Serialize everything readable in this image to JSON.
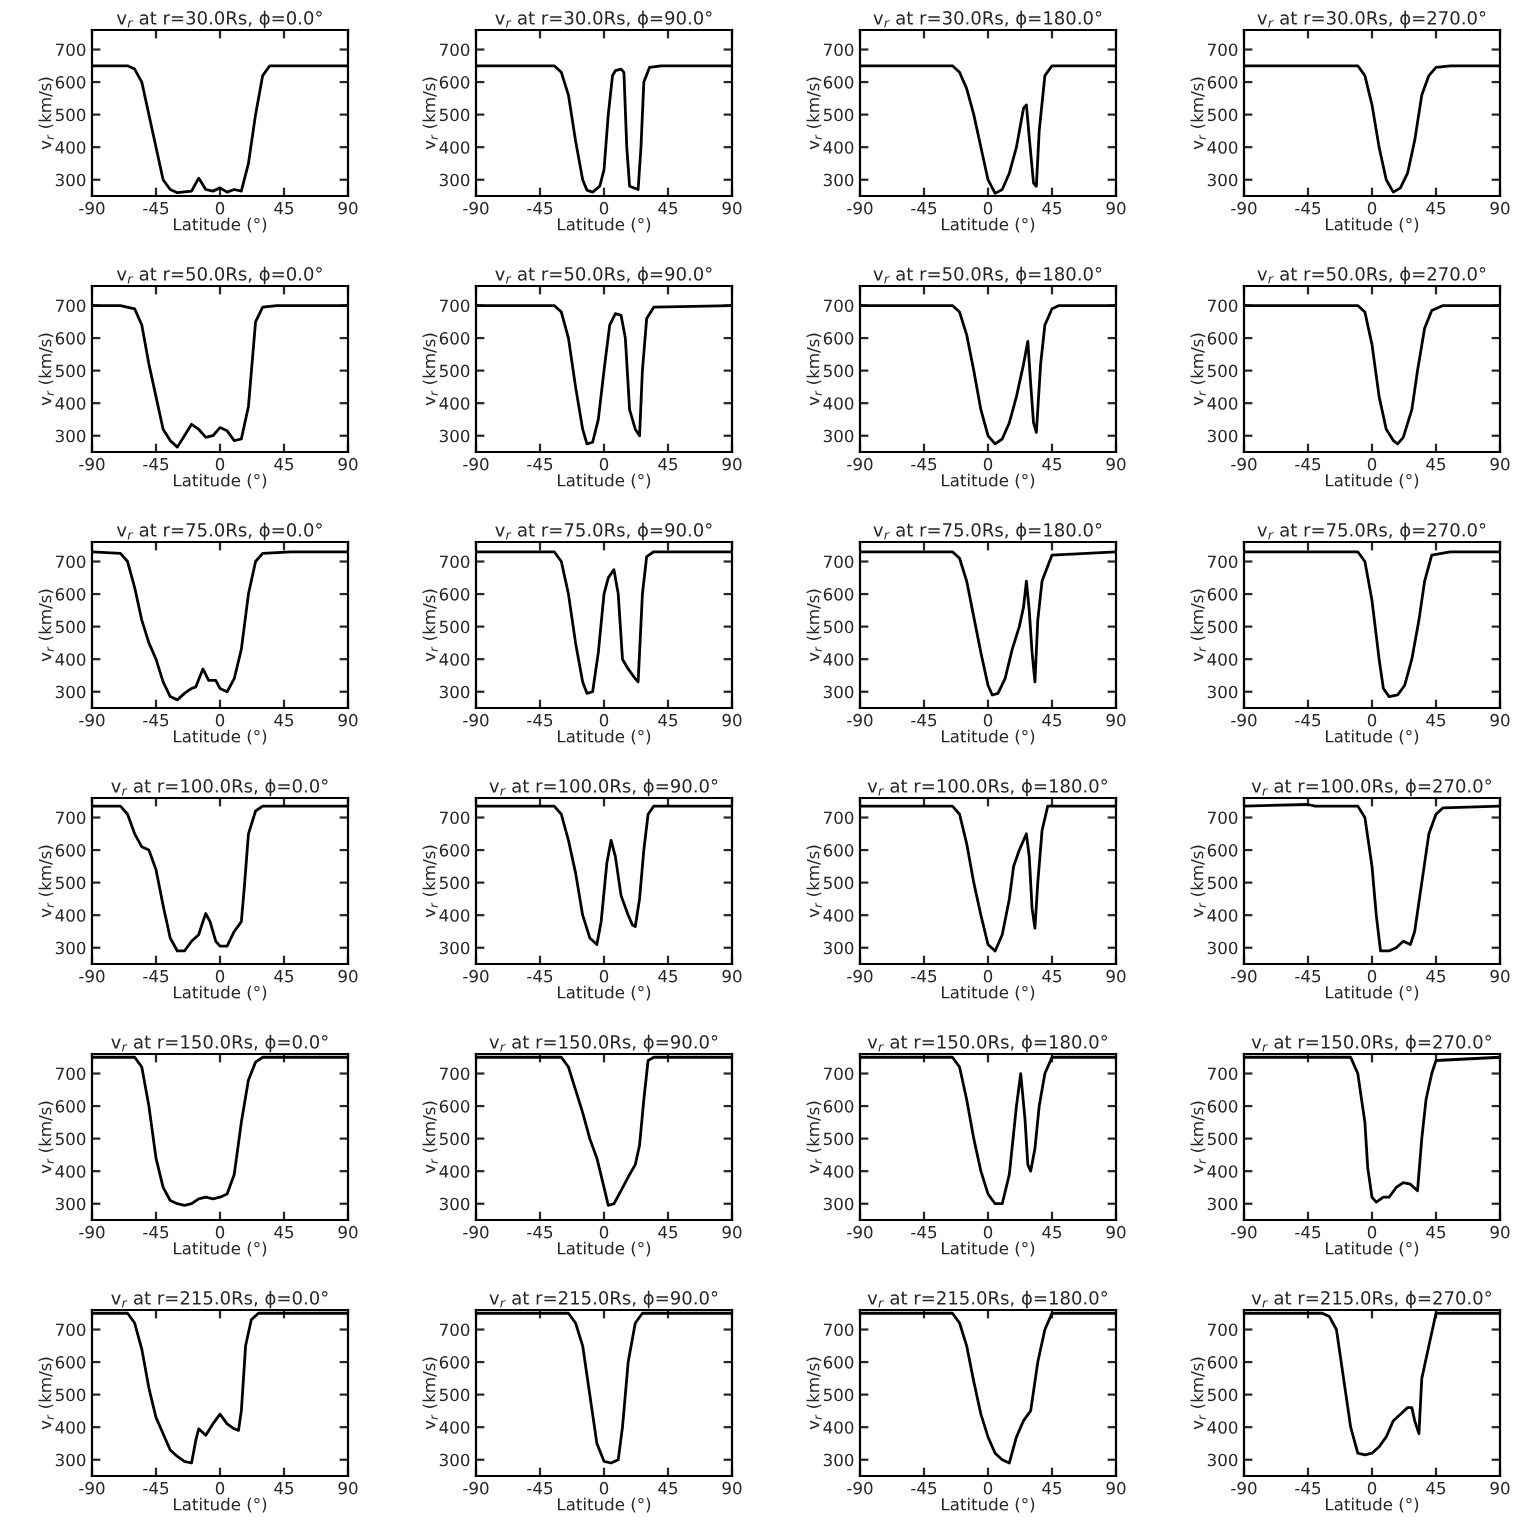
{
  "chart_data": [
    {
      "type": "line",
      "title": "v$_{r}$ at r=30.0Rs, ϕ=0.0°",
      "xlabel": "Latitude (°)",
      "ylabel": "v$_{r}$ (km/s)",
      "color": "#000000",
      "xlim": [
        -90,
        90
      ],
      "xticks": [
        -90,
        -45,
        0,
        45,
        90
      ],
      "ylim": [
        250,
        760
      ],
      "yticks": [
        300,
        400,
        500,
        600,
        700
      ],
      "x": [
        -90,
        -65,
        -60,
        -55,
        -50,
        -45,
        -40,
        -35,
        -30,
        -20,
        -15,
        -10,
        -5,
        0,
        5,
        10,
        15,
        20,
        25,
        30,
        35,
        90
      ],
      "values": [
        650,
        650,
        640,
        600,
        500,
        400,
        300,
        270,
        260,
        265,
        305,
        270,
        265,
        275,
        262,
        270,
        265,
        350,
        500,
        620,
        650,
        650
      ]
    },
    {
      "type": "line",
      "title": "v$_{r}$ at r=30.0Rs, ϕ=90.0°",
      "xlabel": "Latitude (°)",
      "ylabel": "v$_{r}$ (km/s)",
      "color": "#000000",
      "xlim": [
        -90,
        90
      ],
      "xticks": [
        -90,
        -45,
        0,
        45,
        90
      ],
      "ylim": [
        250,
        760
      ],
      "yticks": [
        300,
        400,
        500,
        600,
        700
      ],
      "x": [
        -90,
        -35,
        -30,
        -25,
        -20,
        -15,
        -12,
        -8,
        -3,
        0,
        3,
        6,
        8,
        12,
        14,
        16,
        18,
        24,
        26,
        28,
        32,
        40,
        90
      ],
      "values": [
        650,
        650,
        630,
        560,
        420,
        300,
        268,
        262,
        280,
        330,
        500,
        620,
        635,
        640,
        630,
        400,
        280,
        270,
        400,
        600,
        645,
        650,
        650
      ]
    },
    {
      "type": "line",
      "title": "v$_{r}$ at r=30.0Rs, ϕ=180.0°",
      "xlabel": "Latitude (°)",
      "ylabel": "v$_{r}$ (km/s)",
      "color": "#000000",
      "xlim": [
        -90,
        90
      ],
      "xticks": [
        -90,
        -45,
        0,
        45,
        90
      ],
      "ylim": [
        250,
        760
      ],
      "yticks": [
        300,
        400,
        500,
        600,
        700
      ],
      "x": [
        -90,
        -25,
        -20,
        -15,
        -10,
        -5,
        0,
        5,
        10,
        15,
        20,
        25,
        27,
        29,
        32,
        34,
        36,
        40,
        45,
        90
      ],
      "values": [
        650,
        650,
        630,
        580,
        500,
        400,
        300,
        258,
        270,
        320,
        400,
        520,
        530,
        430,
        290,
        280,
        450,
        620,
        650,
        650
      ]
    },
    {
      "type": "line",
      "title": "v$_{r}$ at r=30.0Rs, ϕ=270.0°",
      "xlabel": "Latitude (°)",
      "ylabel": "v$_{r}$ (km/s)",
      "color": "#000000",
      "xlim": [
        -90,
        90
      ],
      "xticks": [
        -90,
        -45,
        0,
        45,
        90
      ],
      "ylim": [
        250,
        760
      ],
      "yticks": [
        300,
        400,
        500,
        600,
        700
      ],
      "x": [
        -90,
        -10,
        -5,
        0,
        5,
        10,
        15,
        20,
        25,
        30,
        35,
        40,
        45,
        55,
        90
      ],
      "values": [
        650,
        650,
        620,
        530,
        400,
        300,
        262,
        275,
        320,
        420,
        560,
        620,
        645,
        650,
        650
      ]
    },
    {
      "type": "line",
      "title": "v$_{r}$ at r=50.0Rs, ϕ=0.0°",
      "xlabel": "Latitude (°)",
      "ylabel": "v$_{r}$ (km/s)",
      "color": "#000000",
      "xlim": [
        -90,
        90
      ],
      "xticks": [
        -90,
        -45,
        0,
        45,
        90
      ],
      "ylim": [
        250,
        760
      ],
      "yticks": [
        300,
        400,
        500,
        600,
        700
      ],
      "x": [
        -90,
        -70,
        -60,
        -55,
        -50,
        -45,
        -40,
        -35,
        -30,
        -25,
        -20,
        -15,
        -10,
        -5,
        0,
        5,
        10,
        15,
        20,
        25,
        30,
        40,
        90
      ],
      "values": [
        700,
        700,
        690,
        640,
        520,
        420,
        320,
        285,
        265,
        300,
        335,
        320,
        295,
        300,
        325,
        315,
        285,
        290,
        390,
        650,
        695,
        700,
        700
      ]
    },
    {
      "type": "line",
      "title": "v$_{r}$ at r=50.0Rs, ϕ=90.0°",
      "xlabel": "Latitude (°)",
      "ylabel": "v$_{r}$ (km/s)",
      "color": "#000000",
      "xlim": [
        -90,
        90
      ],
      "xticks": [
        -90,
        -45,
        0,
        45,
        90
      ],
      "ylim": [
        250,
        760
      ],
      "yticks": [
        300,
        400,
        500,
        600,
        700
      ],
      "x": [
        -90,
        -35,
        -30,
        -25,
        -20,
        -15,
        -12,
        -8,
        -4,
        0,
        4,
        8,
        12,
        15,
        18,
        22,
        25,
        27,
        30,
        35,
        90
      ],
      "values": [
        700,
        700,
        680,
        600,
        450,
        320,
        275,
        280,
        350,
        500,
        640,
        675,
        670,
        600,
        380,
        320,
        300,
        500,
        660,
        695,
        700
      ]
    },
    {
      "type": "line",
      "title": "v$_{r}$ at r=50.0Rs, ϕ=180.0°",
      "xlabel": "Latitude (°)",
      "ylabel": "v$_{r}$ (km/s)",
      "color": "#000000",
      "xlim": [
        -90,
        90
      ],
      "xticks": [
        -90,
        -45,
        0,
        45,
        90
      ],
      "ylim": [
        250,
        760
      ],
      "yticks": [
        300,
        400,
        500,
        600,
        700
      ],
      "x": [
        -90,
        -25,
        -20,
        -15,
        -10,
        -5,
        0,
        5,
        10,
        15,
        20,
        25,
        28,
        30,
        32,
        34,
        37,
        40,
        45,
        50,
        90
      ],
      "values": [
        700,
        700,
        680,
        610,
        500,
        380,
        300,
        275,
        290,
        340,
        420,
        520,
        590,
        460,
        340,
        310,
        520,
        640,
        690,
        700,
        700
      ]
    },
    {
      "type": "line",
      "title": "v$_{r}$ at r=50.0Rs, ϕ=270.0°",
      "xlabel": "Latitude (°)",
      "ylabel": "v$_{r}$ (km/s)",
      "color": "#000000",
      "xlim": [
        -90,
        90
      ],
      "xticks": [
        -90,
        -45,
        0,
        45,
        90
      ],
      "ylim": [
        250,
        760
      ],
      "yticks": [
        300,
        400,
        500,
        600,
        700
      ],
      "x": [
        -90,
        -10,
        -5,
        0,
        5,
        10,
        15,
        18,
        22,
        28,
        32,
        37,
        42,
        50,
        90
      ],
      "values": [
        700,
        700,
        680,
        580,
        420,
        320,
        285,
        275,
        295,
        380,
        500,
        630,
        685,
        700,
        700
      ]
    },
    {
      "type": "line",
      "title": "v$_{r}$ at r=75.0Rs, ϕ=0.0°",
      "xlabel": "Latitude (°)",
      "ylabel": "v$_{r}$ (km/s)",
      "color": "#000000",
      "xlim": [
        -90,
        90
      ],
      "xticks": [
        -90,
        -45,
        0,
        45,
        90
      ],
      "ylim": [
        250,
        760
      ],
      "yticks": [
        300,
        400,
        500,
        600,
        700
      ],
      "x": [
        -90,
        -70,
        -65,
        -60,
        -55,
        -50,
        -45,
        -40,
        -35,
        -30,
        -25,
        -20,
        -17,
        -12,
        -8,
        -3,
        0,
        5,
        10,
        15,
        20,
        25,
        30,
        50,
        90
      ],
      "values": [
        730,
        725,
        700,
        620,
        520,
        450,
        400,
        330,
        285,
        275,
        295,
        310,
        315,
        370,
        335,
        335,
        310,
        300,
        340,
        430,
        600,
        700,
        725,
        730,
        730
      ]
    },
    {
      "type": "line",
      "title": "v$_{r}$ at r=75.0Rs, ϕ=90.0°",
      "xlabel": "Latitude (°)",
      "ylabel": "v$_{r}$ (km/s)",
      "color": "#000000",
      "xlim": [
        -90,
        90
      ],
      "xticks": [
        -90,
        -45,
        0,
        45,
        90
      ],
      "ylim": [
        250,
        760
      ],
      "yticks": [
        300,
        400,
        500,
        600,
        700
      ],
      "x": [
        -90,
        -35,
        -30,
        -25,
        -20,
        -15,
        -12,
        -8,
        -4,
        0,
        3,
        7,
        10,
        13,
        17,
        22,
        24,
        27,
        30,
        35,
        90
      ],
      "values": [
        730,
        730,
        700,
        600,
        450,
        330,
        295,
        300,
        420,
        600,
        650,
        675,
        600,
        400,
        370,
        340,
        330,
        600,
        715,
        730,
        730
      ]
    },
    {
      "type": "line",
      "title": "v$_{r}$ at r=75.0Rs, ϕ=180.0°",
      "xlabel": "Latitude (°)",
      "ylabel": "v$_{r}$ (km/s)",
      "color": "#000000",
      "xlim": [
        -90,
        90
      ],
      "xticks": [
        -90,
        -45,
        0,
        45,
        90
      ],
      "ylim": [
        250,
        760
      ],
      "yticks": [
        300,
        400,
        500,
        600,
        700
      ],
      "x": [
        -90,
        -25,
        -20,
        -15,
        -10,
        -5,
        0,
        3,
        7,
        12,
        17,
        22,
        25,
        27,
        29,
        31,
        33,
        35,
        38,
        45,
        90
      ],
      "values": [
        730,
        730,
        710,
        640,
        530,
        420,
        320,
        290,
        295,
        340,
        430,
        500,
        560,
        640,
        550,
        420,
        330,
        520,
        640,
        720,
        730
      ]
    },
    {
      "type": "line",
      "title": "v$_{r}$ at r=75.0Rs, ϕ=270.0°",
      "xlabel": "Latitude (°)",
      "ylabel": "v$_{r}$ (km/s)",
      "color": "#000000",
      "xlim": [
        -90,
        90
      ],
      "xticks": [
        -90,
        -45,
        0,
        45,
        90
      ],
      "ylim": [
        250,
        760
      ],
      "yticks": [
        300,
        400,
        500,
        600,
        700
      ],
      "x": [
        -90,
        -10,
        -5,
        0,
        5,
        8,
        12,
        18,
        23,
        28,
        33,
        37,
        42,
        55,
        90
      ],
      "values": [
        730,
        730,
        700,
        580,
        400,
        310,
        285,
        290,
        320,
        400,
        520,
        640,
        720,
        730,
        730
      ]
    },
    {
      "type": "line",
      "title": "v$_{r}$ at r=100.0Rs, ϕ=0.0°",
      "xlabel": "Latitude (°)",
      "ylabel": "v$_{r}$ (km/s)",
      "color": "#000000",
      "xlim": [
        -90,
        90
      ],
      "xticks": [
        -90,
        -45,
        0,
        45,
        90
      ],
      "ylim": [
        250,
        760
      ],
      "yticks": [
        300,
        400,
        500,
        600,
        700
      ],
      "x": [
        -90,
        -70,
        -65,
        -60,
        -55,
        -50,
        -45,
        -40,
        -35,
        -30,
        -25,
        -20,
        -15,
        -12,
        -10,
        -7,
        -3,
        0,
        5,
        10,
        15,
        17,
        20,
        25,
        30,
        90
      ],
      "values": [
        735,
        735,
        710,
        650,
        610,
        600,
        540,
        430,
        330,
        290,
        290,
        320,
        340,
        380,
        405,
        380,
        320,
        305,
        305,
        350,
        380,
        480,
        650,
        720,
        735,
        735
      ]
    },
    {
      "type": "line",
      "title": "v$_{r}$ at r=100.0Rs, ϕ=90.0°",
      "xlabel": "Latitude (°)",
      "ylabel": "v$_{r}$ (km/s)",
      "color": "#000000",
      "xlim": [
        -90,
        90
      ],
      "xticks": [
        -90,
        -45,
        0,
        45,
        90
      ],
      "ylim": [
        250,
        760
      ],
      "yticks": [
        300,
        400,
        500,
        600,
        700
      ],
      "x": [
        -90,
        -35,
        -30,
        -25,
        -20,
        -15,
        -10,
        -5,
        -2,
        2,
        5,
        8,
        12,
        17,
        20,
        22,
        25,
        28,
        31,
        35,
        90
      ],
      "values": [
        735,
        735,
        710,
        630,
        530,
        400,
        330,
        310,
        380,
        560,
        630,
        580,
        460,
        400,
        370,
        365,
        450,
        600,
        710,
        735,
        735
      ]
    },
    {
      "type": "line",
      "title": "v$_{r}$ at r=100.0Rs, ϕ=180.0°",
      "xlabel": "Latitude (°)",
      "ylabel": "v$_{r}$ (km/s)",
      "color": "#000000",
      "xlim": [
        -90,
        90
      ],
      "xticks": [
        -90,
        -45,
        0,
        45,
        90
      ],
      "ylim": [
        250,
        760
      ],
      "yticks": [
        300,
        400,
        500,
        600,
        700
      ],
      "x": [
        -90,
        -25,
        -20,
        -15,
        -10,
        -5,
        0,
        5,
        10,
        15,
        18,
        22,
        27,
        29,
        31,
        33,
        35,
        38,
        42,
        90
      ],
      "values": [
        735,
        735,
        710,
        620,
        500,
        400,
        310,
        290,
        340,
        450,
        550,
        600,
        650,
        580,
        420,
        360,
        500,
        660,
        735,
        735
      ]
    },
    {
      "type": "line",
      "title": "v$_{r}$ at r=100.0Rs, ϕ=270.0°",
      "xlabel": "Latitude (°)",
      "ylabel": "v$_{r}$ (km/s)",
      "color": "#000000",
      "xlim": [
        -90,
        90
      ],
      "xticks": [
        -90,
        -45,
        0,
        45,
        90
      ],
      "ylim": [
        250,
        760
      ],
      "yticks": [
        300,
        400,
        500,
        600,
        700
      ],
      "x": [
        -90,
        -45,
        -40,
        -30,
        -10,
        -5,
        0,
        3,
        6,
        12,
        17,
        22,
        27,
        30,
        35,
        40,
        45,
        50,
        90
      ],
      "values": [
        735,
        740,
        735,
        735,
        735,
        700,
        550,
        400,
        290,
        290,
        300,
        320,
        310,
        350,
        500,
        650,
        710,
        730,
        735
      ]
    },
    {
      "type": "line",
      "title": "v$_{r}$ at r=150.0Rs, ϕ=0.0°",
      "xlabel": "Latitude (°)",
      "ylabel": "v$_{r}$ (km/s)",
      "color": "#000000",
      "xlim": [
        -90,
        90
      ],
      "xticks": [
        -90,
        -45,
        0,
        45,
        90
      ],
      "ylim": [
        250,
        760
      ],
      "yticks": [
        300,
        400,
        500,
        600,
        700
      ],
      "x": [
        -90,
        -60,
        -55,
        -50,
        -45,
        -40,
        -35,
        -30,
        -25,
        -20,
        -15,
        -10,
        -5,
        0,
        5,
        10,
        15,
        20,
        25,
        30,
        90
      ],
      "values": [
        750,
        750,
        720,
        600,
        440,
        350,
        310,
        300,
        295,
        300,
        315,
        320,
        315,
        320,
        330,
        390,
        550,
        680,
        735,
        750,
        750
      ]
    },
    {
      "type": "line",
      "title": "v$_{r}$ at r=150.0Rs, ϕ=90.0°",
      "xlabel": "Latitude (°)",
      "ylabel": "v$_{r}$ (km/s)",
      "color": "#000000",
      "xlim": [
        -90,
        90
      ],
      "xticks": [
        -90,
        -45,
        0,
        45,
        90
      ],
      "ylim": [
        250,
        760
      ],
      "yticks": [
        300,
        400,
        500,
        600,
        700
      ],
      "x": [
        -90,
        -30,
        -25,
        -20,
        -15,
        -10,
        -5,
        0,
        3,
        7,
        12,
        18,
        22,
        25,
        28,
        31,
        35,
        90
      ],
      "values": [
        750,
        750,
        720,
        650,
        580,
        500,
        440,
        350,
        295,
        300,
        340,
        390,
        420,
        480,
        620,
        740,
        750,
        750
      ]
    },
    {
      "type": "line",
      "title": "v$_{r}$ at r=150.0Rs, ϕ=180.0°",
      "xlabel": "Latitude (°)",
      "ylabel": "v$_{r}$ (km/s)",
      "color": "#000000",
      "xlim": [
        -90,
        90
      ],
      "xticks": [
        -90,
        -45,
        0,
        45,
        90
      ],
      "ylim": [
        250,
        760
      ],
      "yticks": [
        300,
        400,
        500,
        600,
        700
      ],
      "x": [
        -90,
        -25,
        -20,
        -15,
        -10,
        -5,
        0,
        5,
        10,
        15,
        20,
        23,
        26,
        28,
        30,
        33,
        36,
        40,
        45,
        90
      ],
      "values": [
        750,
        750,
        720,
        620,
        500,
        400,
        330,
        300,
        300,
        390,
        600,
        700,
        560,
        420,
        400,
        470,
        600,
        700,
        750,
        750
      ]
    },
    {
      "type": "line",
      "title": "v$_{r}$ at r=150.0Rs, ϕ=270.0°",
      "xlabel": "Latitude (°)",
      "ylabel": "v$_{r}$ (km/s)",
      "color": "#000000",
      "xlim": [
        -90,
        90
      ],
      "xticks": [
        -90,
        -45,
        0,
        45,
        90
      ],
      "ylim": [
        250,
        760
      ],
      "yticks": [
        300,
        400,
        500,
        600,
        700
      ],
      "x": [
        -90,
        -15,
        -10,
        -5,
        -3,
        0,
        3,
        8,
        12,
        17,
        22,
        27,
        32,
        35,
        38,
        42,
        45,
        90
      ],
      "values": [
        750,
        750,
        700,
        550,
        410,
        320,
        305,
        320,
        320,
        350,
        365,
        360,
        340,
        500,
        620,
        700,
        740,
        750
      ]
    },
    {
      "type": "line",
      "title": "v$_{r}$ at r=215.0Rs, ϕ=0.0°",
      "xlabel": "Latitude (°)",
      "ylabel": "v$_{r}$ (km/s)",
      "color": "#000000",
      "xlim": [
        -90,
        90
      ],
      "xticks": [
        -90,
        -45,
        0,
        45,
        90
      ],
      "ylim": [
        250,
        760
      ],
      "yticks": [
        300,
        400,
        500,
        600,
        700
      ],
      "x": [
        -90,
        -65,
        -60,
        -55,
        -50,
        -45,
        -40,
        -35,
        -30,
        -25,
        -20,
        -17,
        -15,
        -10,
        -5,
        0,
        5,
        10,
        13,
        15,
        18,
        22,
        27,
        90
      ],
      "values": [
        750,
        750,
        720,
        640,
        520,
        430,
        380,
        330,
        310,
        295,
        290,
        360,
        395,
        375,
        410,
        440,
        410,
        395,
        390,
        450,
        650,
        730,
        750,
        750
      ]
    },
    {
      "type": "line",
      "title": "v$_{r}$ at r=215.0Rs, ϕ=90.0°",
      "xlabel": "Latitude (°)",
      "ylabel": "v$_{r}$ (km/s)",
      "color": "#000000",
      "xlim": [
        -90,
        90
      ],
      "xticks": [
        -90,
        -45,
        0,
        45,
        90
      ],
      "ylim": [
        250,
        760
      ],
      "yticks": [
        300,
        400,
        500,
        600,
        700
      ],
      "x": [
        -90,
        -25,
        -20,
        -15,
        -10,
        -5,
        0,
        5,
        10,
        13,
        17,
        22,
        27,
        90
      ],
      "values": [
        750,
        750,
        720,
        650,
        500,
        350,
        295,
        290,
        300,
        400,
        600,
        720,
        750,
        750
      ]
    },
    {
      "type": "line",
      "title": "v$_{r}$ at r=215.0Rs, ϕ=180.0°",
      "xlabel": "Latitude (°)",
      "ylabel": "v$_{r}$ (km/s)",
      "color": "#000000",
      "xlim": [
        -90,
        90
      ],
      "xticks": [
        -90,
        -45,
        0,
        45,
        90
      ],
      "ylim": [
        250,
        760
      ],
      "yticks": [
        300,
        400,
        500,
        600,
        700
      ],
      "x": [
        -90,
        -25,
        -20,
        -15,
        -10,
        -5,
        0,
        5,
        10,
        15,
        20,
        25,
        30,
        35,
        40,
        45,
        90
      ],
      "values": [
        750,
        750,
        720,
        650,
        540,
        440,
        370,
        320,
        300,
        290,
        370,
        420,
        450,
        600,
        700,
        750,
        750
      ]
    },
    {
      "type": "line",
      "title": "v$_{r}$ at r=215.0Rs, ϕ=270.0°",
      "xlabel": "Latitude (°)",
      "ylabel": "v$_{r}$ (km/s)",
      "color": "#000000",
      "xlim": [
        -90,
        90
      ],
      "xticks": [
        -90,
        -45,
        0,
        45,
        90
      ],
      "ylim": [
        250,
        760
      ],
      "yticks": [
        300,
        400,
        500,
        600,
        700
      ],
      "x": [
        -90,
        -35,
        -30,
        -25,
        -20,
        -15,
        -10,
        -5,
        0,
        5,
        10,
        15,
        20,
        25,
        28,
        30,
        33,
        35,
        40,
        45,
        90
      ],
      "values": [
        750,
        750,
        740,
        700,
        550,
        400,
        320,
        315,
        320,
        340,
        370,
        420,
        440,
        460,
        460,
        420,
        380,
        550,
        650,
        750,
        750
      ]
    }
  ]
}
